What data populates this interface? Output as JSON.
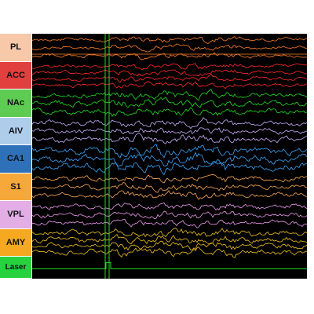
{
  "viewer": {
    "background": "#000000",
    "channels": [
      {
        "label": "PL",
        "color": "#ff7f2a",
        "label_bg": "#f7c9a8",
        "traces": 3,
        "amp": 3.2,
        "seed": 11
      },
      {
        "label": "ACC",
        "color": "#ff2a2a",
        "label_bg": "#e23f3f",
        "traces": 4,
        "amp": 3.4,
        "seed": 23
      },
      {
        "label": "NAc",
        "color": "#22dd22",
        "label_bg": "#5ecb53",
        "traces": 3,
        "amp": 5.0,
        "seed": 37
      },
      {
        "label": "AIV",
        "color": "#c8b0ff",
        "label_bg": "#aecdeb",
        "traces": 3,
        "amp": 5.2,
        "seed": 41
      },
      {
        "label": "CA1",
        "color": "#3aa6ff",
        "label_bg": "#2f71b8",
        "traces": 3,
        "amp": 6.2,
        "seed": 53
      },
      {
        "label": "S1",
        "color": "#ffaa55",
        "label_bg": "#f6a83a",
        "traces": 3,
        "amp": 4.2,
        "seed": 67
      },
      {
        "label": "VPL",
        "color": "#ee99ee",
        "label_bg": "#e3ade6",
        "traces": 3,
        "amp": 4.2,
        "seed": 79
      },
      {
        "label": "AMY",
        "color": "#f0c020",
        "label_bg": "#f6a820",
        "traces": 4,
        "amp": 4.6,
        "seed": 83
      },
      {
        "label": "Laser",
        "color": "#22dd22",
        "label_bg": "#26d33e",
        "traces": 1,
        "amp": 0,
        "seed": 97
      }
    ],
    "stimulus_marker_color": "#22dd22"
  }
}
